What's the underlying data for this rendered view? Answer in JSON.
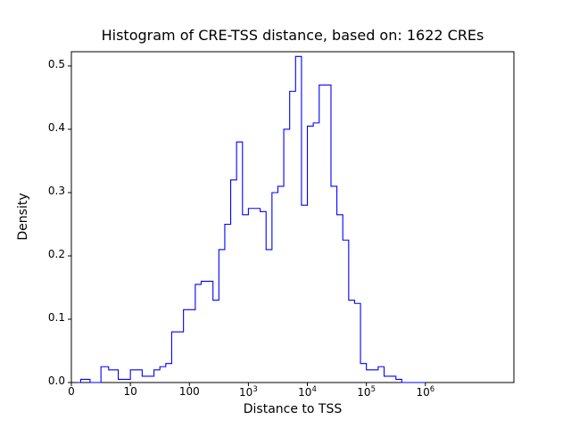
{
  "chart_data": {
    "type": "histogram",
    "subtype": "step-outline",
    "title": "Histogram of CRE-TSS distance, based on: 1622 CREs",
    "xlabel": "Distance to TSS",
    "ylabel": "Density",
    "n_samples_in_title": 1622,
    "line_color": "#0000ff",
    "axis_color": "#000000",
    "x_scale": "symlog",
    "xlim_log10": [
      0,
      7.5
    ],
    "ylim": [
      0,
      0.5225
    ],
    "grid": false,
    "legend": false,
    "bin_edges_log10": {
      "start": 0.0,
      "step": 0.1,
      "count": 60
    },
    "densities": [
      0,
      0,
      0.005,
      0.005,
      0.005,
      0,
      0,
      0.025,
      0.02,
      0.005,
      0.02,
      0.02,
      0.01,
      0.01,
      0.02,
      0.025,
      0.03,
      0.08,
      0.08,
      0.115,
      0.115,
      0.155,
      0.16,
      0.16,
      0.13,
      0.21,
      0.25,
      0.32,
      0.38,
      0.265,
      0.275,
      0.275,
      0.27,
      0.21,
      0.3,
      0.31,
      0.4,
      0.46,
      0.515,
      0.28,
      0.405,
      0.41,
      0.47,
      0.47,
      0.31,
      0.265,
      0.225,
      0.13,
      0.125,
      0.03,
      0.02,
      0.02,
      0.025,
      0.01,
      0.01,
      0.005,
      0,
      0,
      0,
      0
    ],
    "xticks": [
      {
        "value": 0,
        "label": "0"
      },
      {
        "value": 10,
        "label": "10"
      },
      {
        "value": 100,
        "label": "100"
      },
      {
        "value": 1000,
        "label": "10^3"
      },
      {
        "value": 10000,
        "label": "10^4"
      },
      {
        "value": 100000,
        "label": "10^5"
      },
      {
        "value": 1000000,
        "label": "10^6"
      }
    ],
    "yticks": [
      {
        "value": 0.0,
        "label": "0.0"
      },
      {
        "value": 0.1,
        "label": "0.1"
      },
      {
        "value": 0.2,
        "label": "0.2"
      },
      {
        "value": 0.3,
        "label": "0.3"
      },
      {
        "value": 0.4,
        "label": "0.4"
      },
      {
        "value": 0.5,
        "label": "0.5"
      }
    ]
  }
}
